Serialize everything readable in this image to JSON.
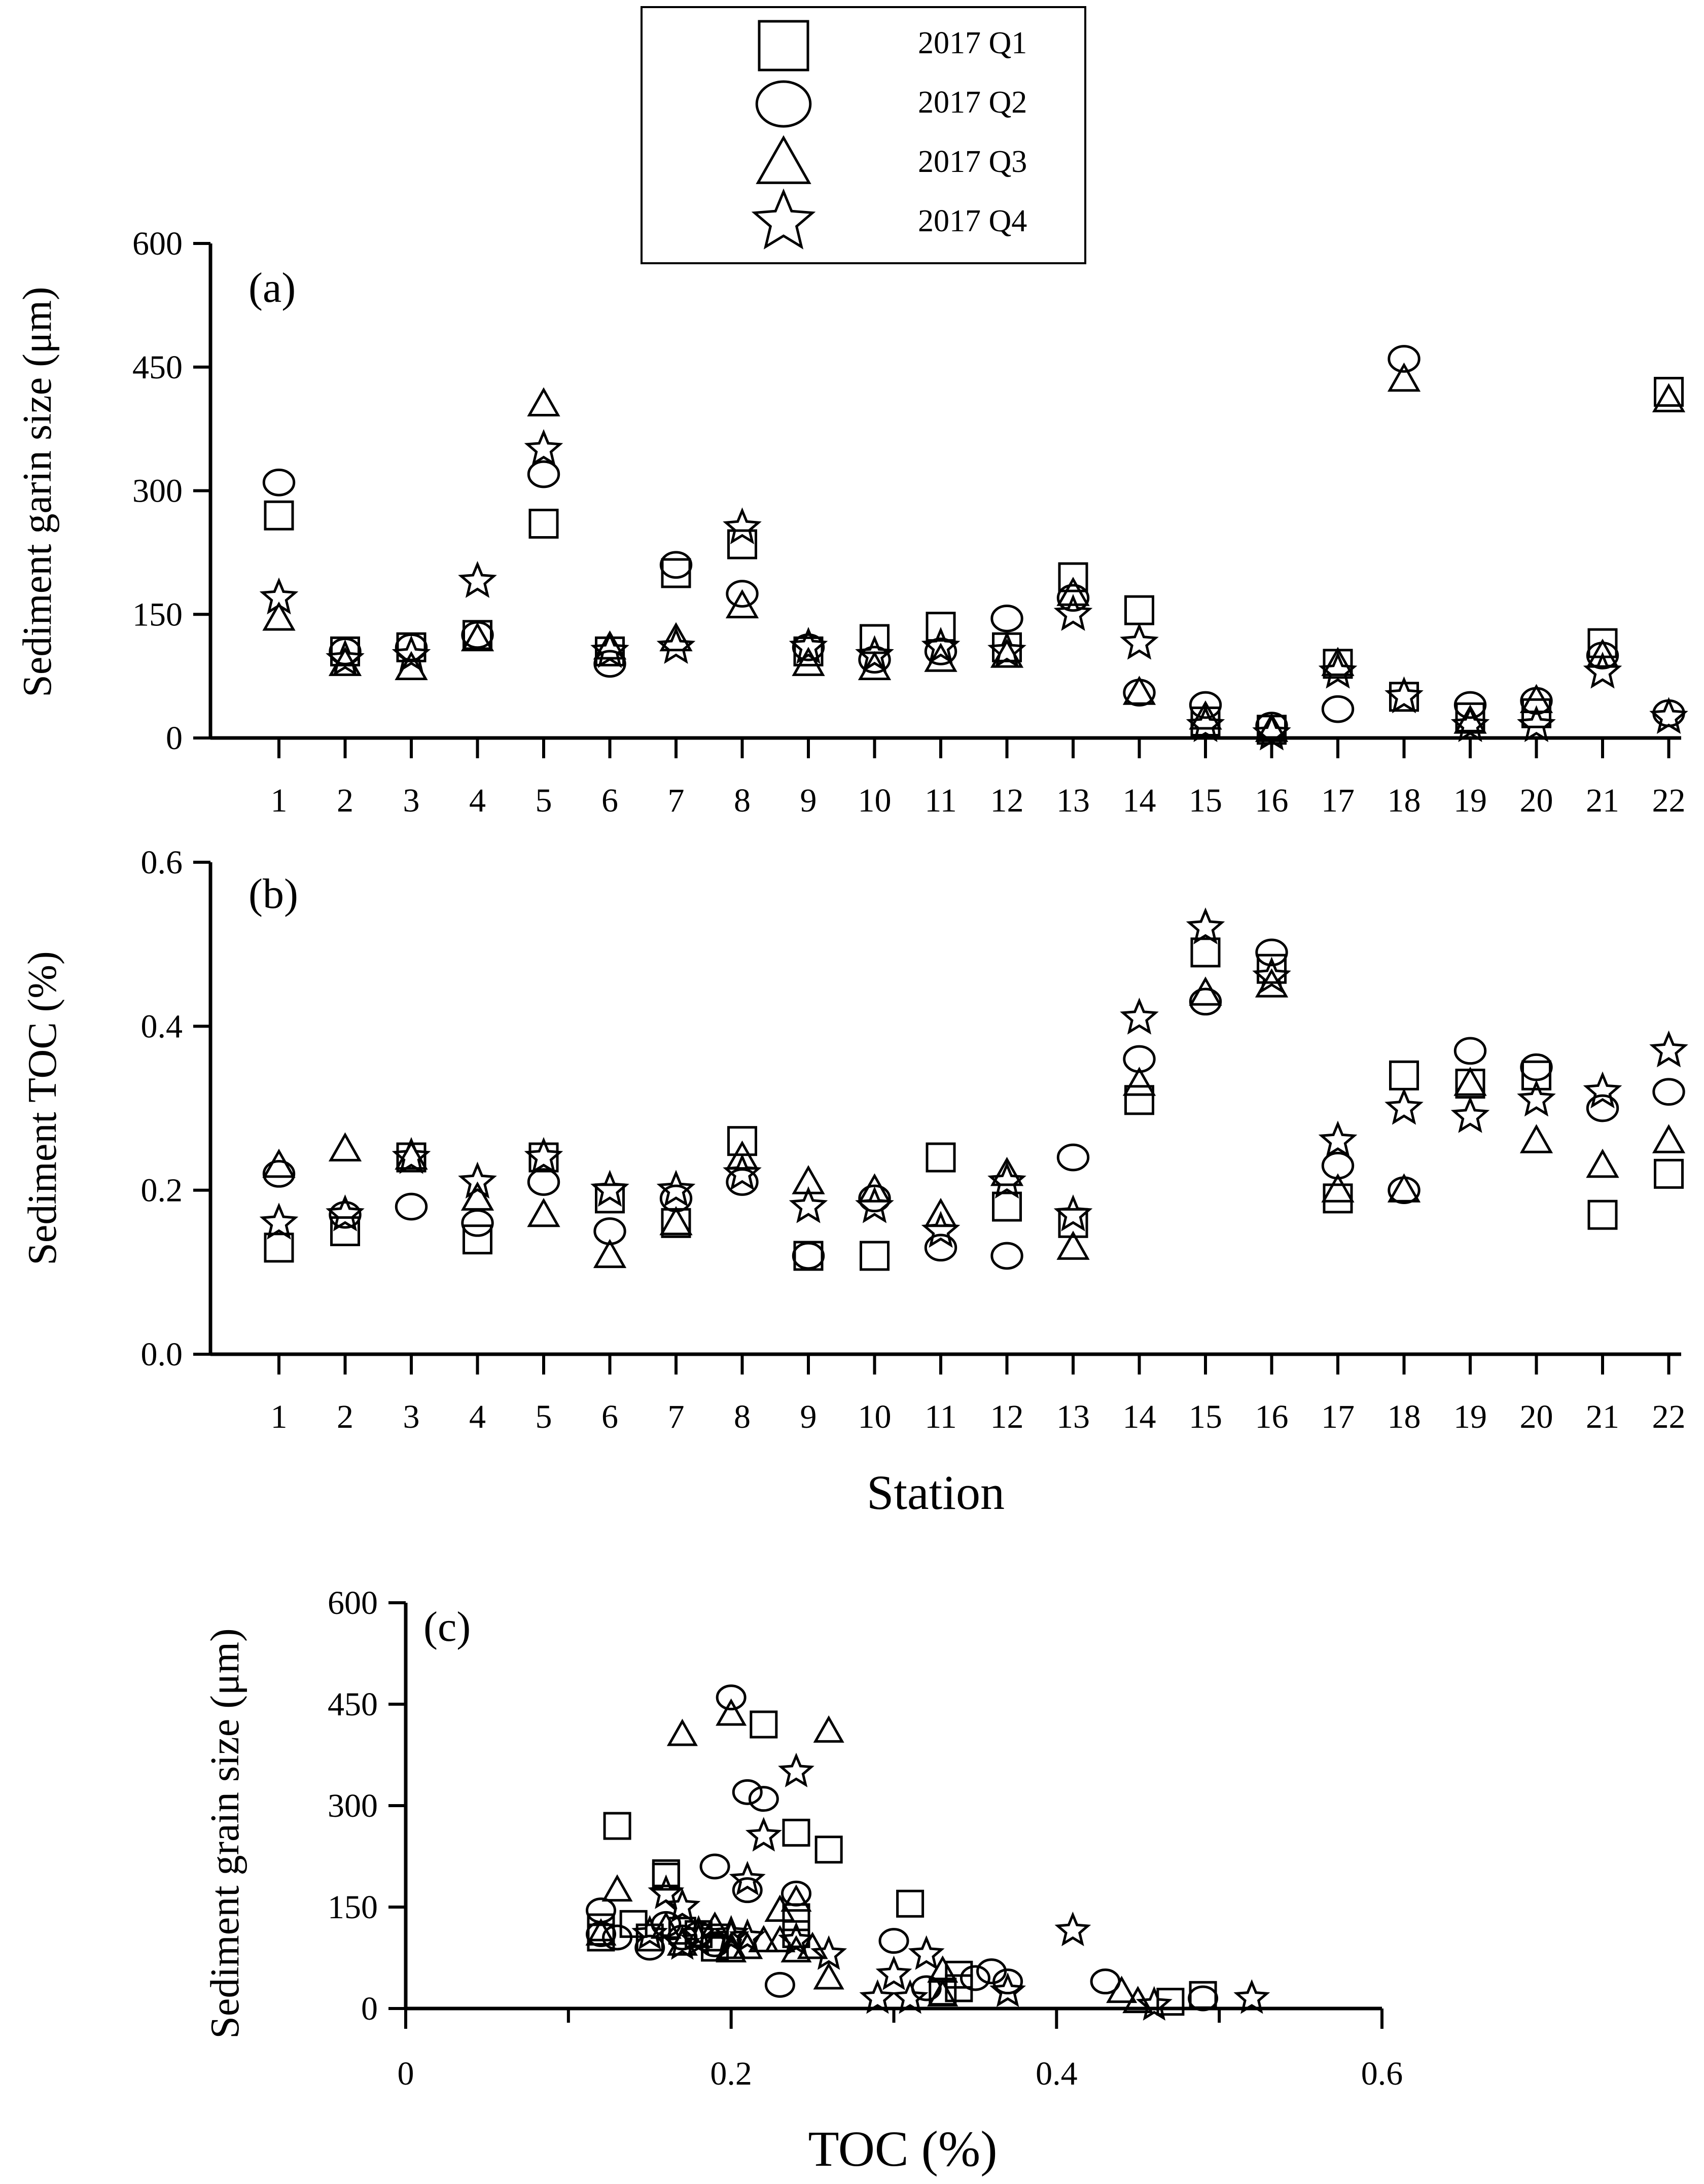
{
  "legend": {
    "entries": [
      {
        "label": "2017 Q1",
        "marker": "square"
      },
      {
        "label": "2017 Q2",
        "marker": "circle"
      },
      {
        "label": "2017 Q3",
        "marker": "triangle"
      },
      {
        "label": "2017 Q4",
        "marker": "star"
      }
    ]
  },
  "chart_data": [
    {
      "type": "scatter",
      "panel_label": "(a)",
      "title": "",
      "xlabel": "",
      "ylabel": "Sediment garin size (μm)",
      "categories": [
        "1",
        "2",
        "3",
        "4",
        "5",
        "6",
        "7",
        "8",
        "9",
        "10",
        "11",
        "12",
        "13",
        "14",
        "15",
        "16",
        "17",
        "18",
        "19",
        "20",
        "21",
        "22"
      ],
      "ylim": [
        0,
        600
      ],
      "yticks": [
        "0",
        "150",
        "300",
        "450",
        "600"
      ],
      "series": [
        {
          "name": "2017 Q1",
          "marker": "square",
          "values": [
            270,
            105,
            110,
            125,
            260,
            105,
            200,
            235,
            105,
            120,
            135,
            110,
            195,
            155,
            20,
            10,
            90,
            50,
            25,
            30,
            115,
            420
          ]
        },
        {
          "name": "2017 Q2",
          "marker": "circle",
          "values": [
            310,
            105,
            110,
            125,
            320,
            90,
            210,
            175,
            110,
            95,
            105,
            145,
            170,
            55,
            40,
            15,
            35,
            460,
            40,
            45,
            100,
            30
          ]
        },
        {
          "name": "2017 Q3",
          "marker": "triangle",
          "values": [
            145,
            90,
            85,
            120,
            405,
            110,
            120,
            160,
            90,
            85,
            95,
            100,
            175,
            55,
            25,
            10,
            90,
            435,
            20,
            45,
            100,
            410
          ]
        },
        {
          "name": "2017 Q4",
          "marker": "star",
          "values": [
            170,
            95,
            100,
            190,
            350,
            105,
            110,
            255,
            110,
            100,
            110,
            105,
            150,
            115,
            15,
            5,
            80,
            50,
            15,
            15,
            80,
            25
          ]
        }
      ]
    },
    {
      "type": "scatter",
      "panel_label": "(b)",
      "title": "",
      "xlabel": "Station",
      "ylabel": "Sediment TOC (%)",
      "categories": [
        "1",
        "2",
        "3",
        "4",
        "5",
        "6",
        "7",
        "8",
        "9",
        "10",
        "11",
        "12",
        "13",
        "14",
        "15",
        "16",
        "17",
        "18",
        "19",
        "20",
        "21",
        "22"
      ],
      "ylim": [
        0.0,
        0.6
      ],
      "yticks": [
        "0.0",
        "0.2",
        "0.4",
        "0.6"
      ],
      "series": [
        {
          "name": "2017 Q1",
          "marker": "square",
          "values": [
            0.13,
            0.15,
            0.24,
            0.14,
            0.24,
            0.19,
            0.16,
            0.26,
            0.12,
            0.12,
            0.24,
            0.18,
            0.16,
            0.31,
            0.49,
            0.47,
            0.19,
            0.34,
            0.33,
            0.34,
            0.17,
            0.22
          ]
        },
        {
          "name": "2017 Q2",
          "marker": "circle",
          "values": [
            0.22,
            0.17,
            0.18,
            0.16,
            0.21,
            0.15,
            0.19,
            0.21,
            0.12,
            0.19,
            0.13,
            0.12,
            0.24,
            0.36,
            0.43,
            0.49,
            0.23,
            0.2,
            0.37,
            0.35,
            0.3,
            0.32
          ]
        },
        {
          "name": "2017 Q3",
          "marker": "triangle",
          "values": [
            0.23,
            0.25,
            0.24,
            0.19,
            0.17,
            0.12,
            0.16,
            0.24,
            0.21,
            0.2,
            0.17,
            0.22,
            0.13,
            0.33,
            0.44,
            0.45,
            0.2,
            0.2,
            0.33,
            0.26,
            0.23,
            0.26
          ]
        },
        {
          "name": "2017 Q4",
          "marker": "star",
          "values": [
            0.16,
            0.17,
            0.24,
            0.21,
            0.24,
            0.2,
            0.2,
            0.22,
            0.18,
            0.18,
            0.15,
            0.21,
            0.17,
            0.41,
            0.52,
            0.46,
            0.26,
            0.3,
            0.29,
            0.31,
            0.32,
            0.37
          ]
        }
      ]
    },
    {
      "type": "scatter",
      "panel_label": "(c)",
      "title": "",
      "xlabel": "TOC (%)",
      "ylabel": "Sediment grain size (μm)",
      "xlim": [
        0,
        0.6
      ],
      "ylim": [
        0,
        600
      ],
      "xticks": [
        "0",
        "0.2",
        "0.4",
        "0.6"
      ],
      "yticks": [
        "0",
        "150",
        "300",
        "450",
        "600"
      ],
      "pairing": "panel (b) TOC values on x, panel (a) grain size values on y, matched by station and quarter"
    }
  ]
}
